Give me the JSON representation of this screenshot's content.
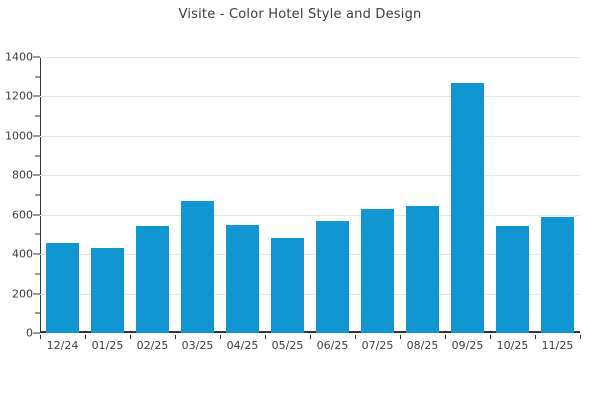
{
  "page": {
    "background": "#ffffff"
  },
  "chart_data": {
    "type": "bar",
    "title": "Visite - Color Hotel Style and Design",
    "categories": [
      "12/24",
      "01/25",
      "02/25",
      "03/25",
      "04/25",
      "05/25",
      "06/25",
      "07/25",
      "08/25",
      "09/25",
      "10/25",
      "11/25"
    ],
    "values": [
      455,
      430,
      545,
      670,
      550,
      480,
      570,
      630,
      645,
      1270,
      545,
      590
    ],
    "xlabel": "",
    "ylabel": "",
    "ylim": [
      0,
      1400
    ],
    "y_major_ticks": [
      0,
      200,
      400,
      600,
      800,
      1000,
      1200,
      1400
    ],
    "y_minor_step": 100,
    "grid": "horizontal-major",
    "legend": "none",
    "bar_color": "#1196d2",
    "grid_color": "#e6e6e6",
    "axis_color": "#333333",
    "text_color": "#3c3c3c"
  }
}
